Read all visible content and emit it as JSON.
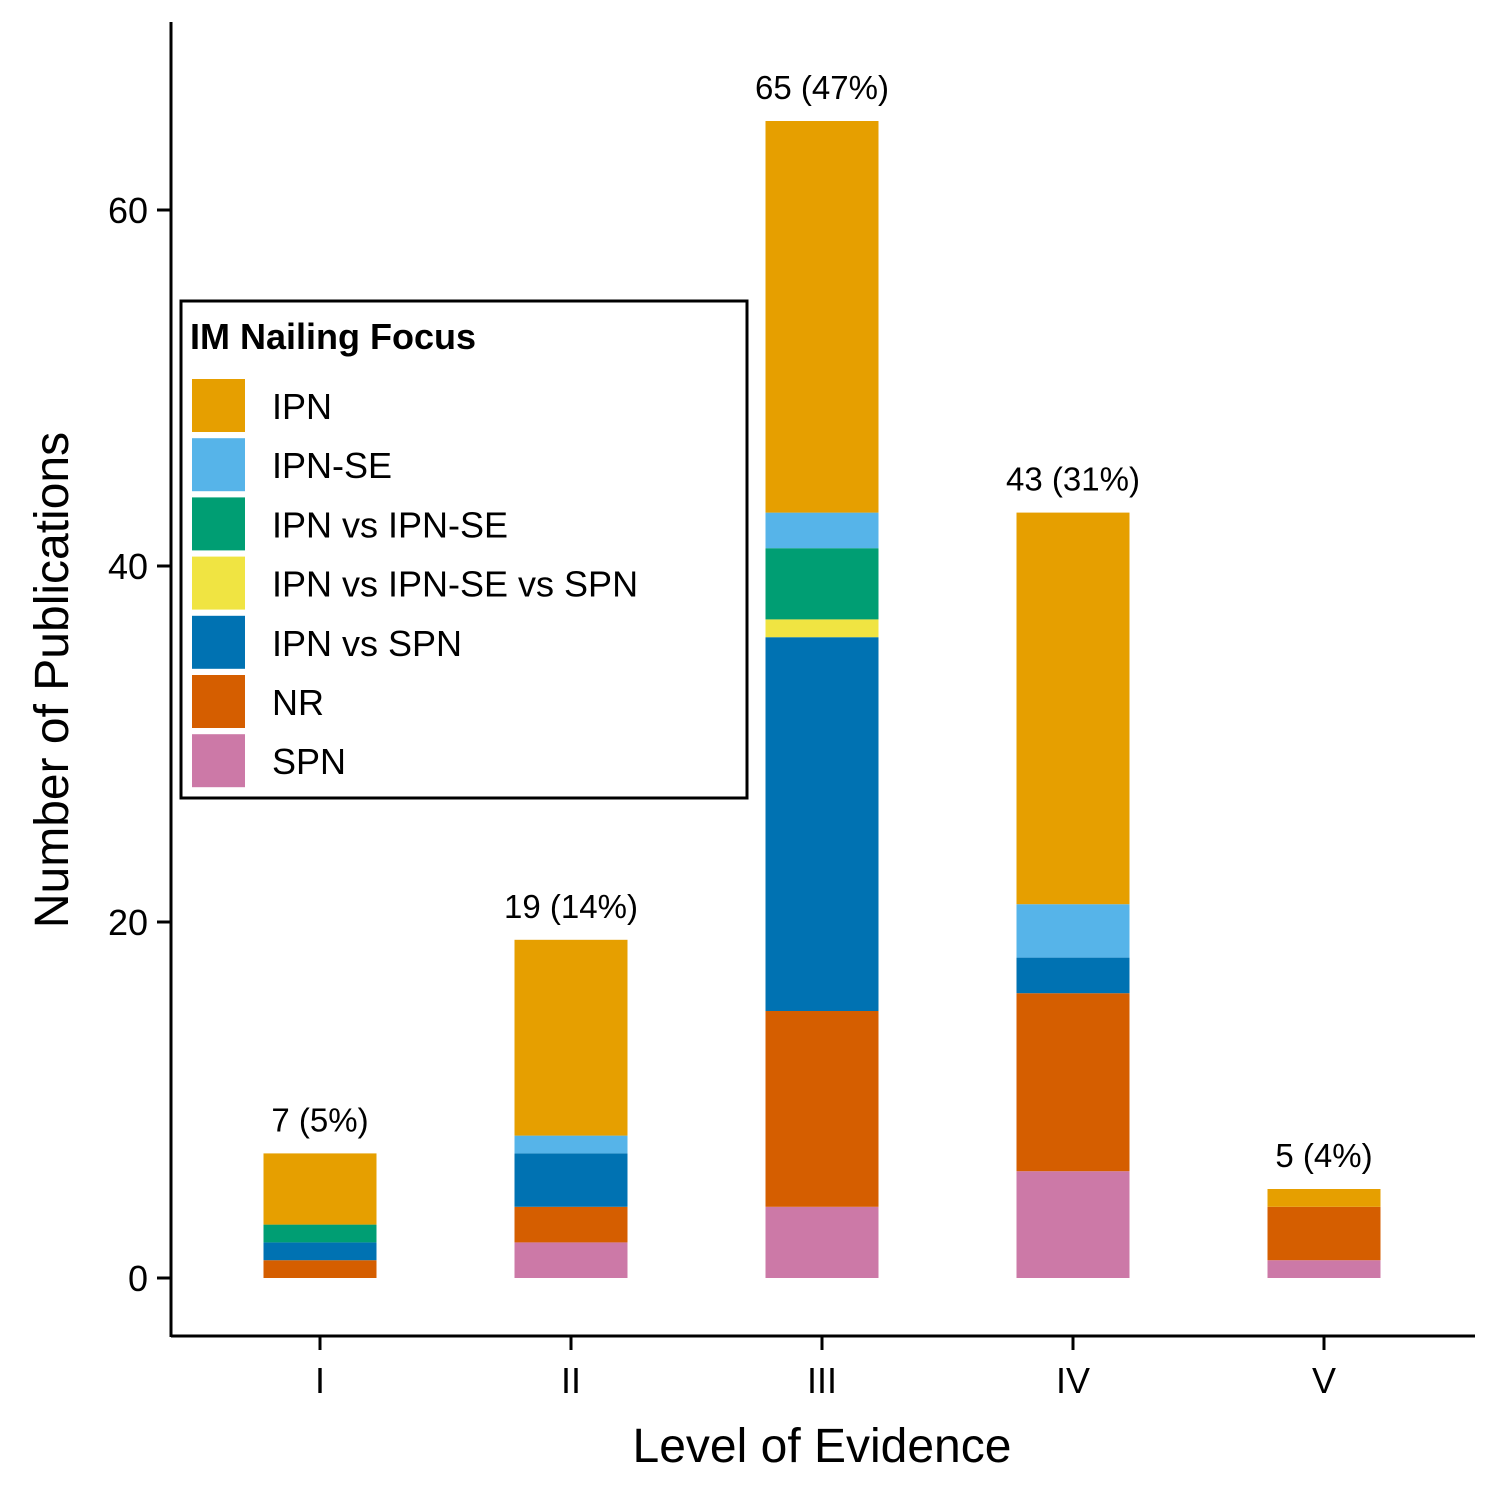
{
  "chart_data": {
    "type": "bar",
    "stacked": true,
    "categories": [
      "I",
      "II",
      "III",
      "IV",
      "V"
    ],
    "series": [
      {
        "name": "SPN",
        "color": "#CC79A7",
        "values": [
          0,
          2,
          4,
          6,
          1
        ]
      },
      {
        "name": "NR",
        "color": "#D55E00",
        "values": [
          1,
          2,
          11,
          10,
          3
        ]
      },
      {
        "name": "IPN vs SPN",
        "color": "#0072B2",
        "values": [
          1,
          3,
          21,
          2,
          0
        ]
      },
      {
        "name": "IPN vs IPN-SE vs SPN",
        "color": "#F0E442",
        "values": [
          0,
          0,
          1,
          0,
          0
        ]
      },
      {
        "name": "IPN vs IPN-SE",
        "color": "#009E73",
        "values": [
          1,
          0,
          4,
          0,
          0
        ]
      },
      {
        "name": "IPN-SE",
        "color": "#56B4E9",
        "values": [
          0,
          1,
          2,
          3,
          0
        ]
      },
      {
        "name": "IPN",
        "color": "#E69F00",
        "values": [
          4,
          11,
          22,
          22,
          1
        ]
      }
    ],
    "bar_labels": [
      "7 (5%)",
      "19 (14%)",
      "65 (47%)",
      "43 (31%)",
      "5 (4%)"
    ],
    "xlabel": "Level of Evidence",
    "ylabel": "Number of Publications",
    "yticks": [
      0,
      20,
      40,
      60
    ],
    "ylim": [
      -3.2,
      70.5
    ],
    "legend": {
      "title": "IM Nailing Focus",
      "placement": "left",
      "order": [
        "IPN",
        "IPN-SE",
        "IPN vs IPN-SE",
        "IPN vs IPN-SE vs SPN",
        "IPN vs SPN",
        "NR",
        "SPN"
      ]
    },
    "grid": false
  }
}
